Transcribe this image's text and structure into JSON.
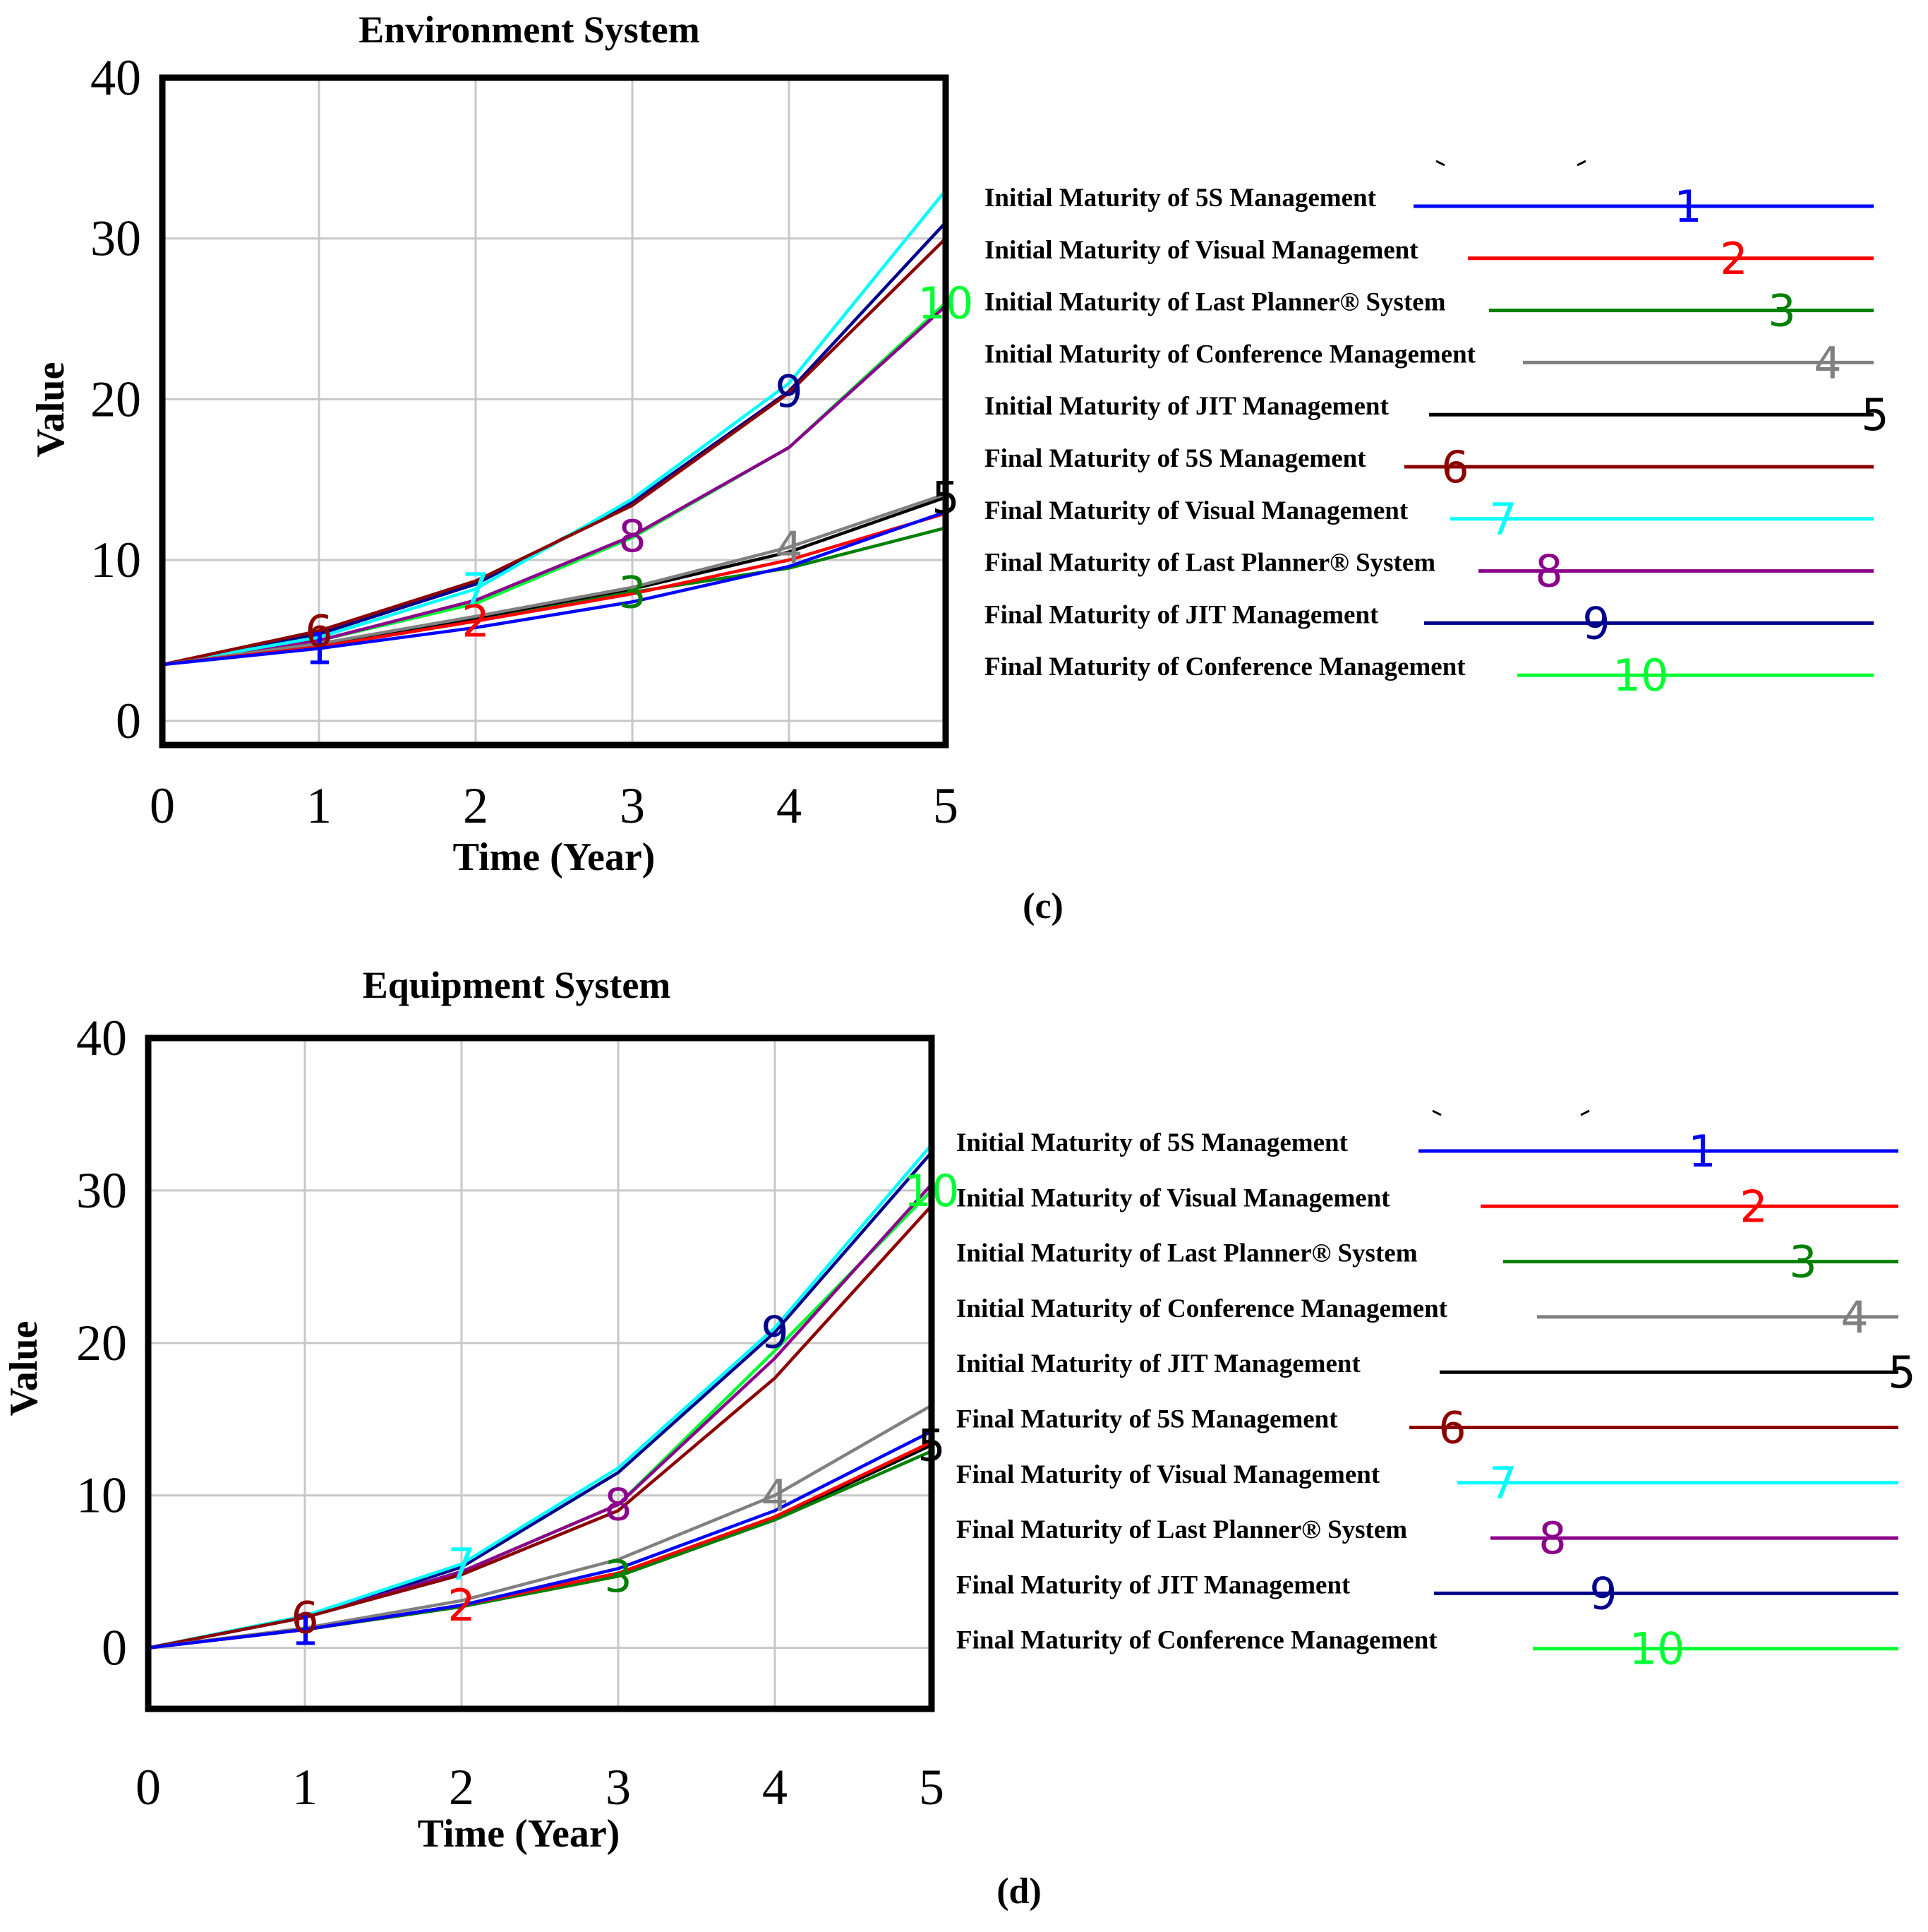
{
  "chart_data": [
    {
      "type": "line",
      "panel_label": "(c)",
      "title": "Environment System",
      "xlabel": "Time (Year)",
      "ylabel": "Value",
      "x": [
        0,
        1,
        2,
        3,
        4,
        5
      ],
      "x_tick_labels": [
        "0",
        "1",
        "2",
        "3",
        "4",
        "5"
      ],
      "y_ticks": [
        0,
        10,
        20,
        30,
        40
      ],
      "y_tick_labels": [
        "0",
        "10",
        "20",
        "30",
        "40"
      ],
      "xlim": [
        0,
        5
      ],
      "ylim": [
        -1.5,
        40
      ],
      "grid": true,
      "legend_position": "right",
      "series": [
        {
          "marker": "1",
          "name": "Initial Maturity of 5S Management",
          "color": "#0000ff",
          "values": [
            3.5,
            4.5,
            5.8,
            7.4,
            9.6,
            13.0
          ]
        },
        {
          "marker": "2",
          "name": "Initial Maturity of Visual Management",
          "color": "#ff0000",
          "values": [
            3.5,
            4.6,
            6.2,
            7.9,
            10.0,
            12.9
          ]
        },
        {
          "marker": "3",
          "name": "Initial Maturity of Last Planner® System",
          "color": "#008000",
          "values": [
            3.5,
            4.6,
            6.2,
            8.0,
            9.5,
            12.0
          ]
        },
        {
          "marker": "4",
          "name": "Initial Maturity of Conference Management",
          "color": "#808080",
          "values": [
            3.5,
            4.8,
            6.5,
            8.3,
            10.8,
            14.1
          ]
        },
        {
          "marker": "5",
          "name": "Initial Maturity of JIT Management",
          "color": "#000000",
          "values": [
            3.5,
            4.7,
            6.4,
            8.2,
            10.5,
            13.9
          ]
        },
        {
          "marker": "6",
          "name": "Final Maturity of 5S Management",
          "color": "#8b0000",
          "values": [
            3.5,
            5.6,
            8.7,
            13.4,
            20.4,
            30.0
          ]
        },
        {
          "marker": "7",
          "name": "Final Maturity of Visual Management",
          "color": "#00ffff",
          "values": [
            3.5,
            5.2,
            8.2,
            13.8,
            21.0,
            33.0
          ]
        },
        {
          "marker": "8",
          "name": "Final Maturity of Last Planner® System",
          "color": "#8b008b",
          "values": [
            3.5,
            5.0,
            7.5,
            11.5,
            17.0,
            25.8
          ]
        },
        {
          "marker": "9",
          "name": "Final Maturity of JIT Management",
          "color": "#00008b",
          "values": [
            3.5,
            5.4,
            8.5,
            13.6,
            20.5,
            31.0
          ]
        },
        {
          "marker": "10",
          "name": "Final Maturity of Conference Management",
          "color": "#00ff33",
          "values": [
            3.5,
            5.0,
            7.3,
            11.4,
            17.0,
            26.0
          ]
        }
      ]
    },
    {
      "type": "line",
      "panel_label": "(d)",
      "title": "Equipment System",
      "xlabel": "Time (Year)",
      "ylabel": "Value",
      "x": [
        0,
        1,
        2,
        3,
        4,
        5
      ],
      "x_tick_labels": [
        "0",
        "1",
        "2",
        "3",
        "4",
        "5"
      ],
      "y_ticks": [
        0,
        10,
        20,
        30,
        40
      ],
      "y_tick_labels": [
        "0",
        "10",
        "20",
        "30",
        "40"
      ],
      "xlim": [
        0,
        5
      ],
      "ylim": [
        -4,
        40
      ],
      "grid": true,
      "legend_position": "right",
      "series": [
        {
          "marker": "1",
          "name": "Initial Maturity of 5S Management",
          "color": "#0000ff",
          "values": [
            0,
            1.2,
            2.8,
            5.2,
            9.0,
            14.2
          ]
        },
        {
          "marker": "2",
          "name": "Initial Maturity of Visual Management",
          "color": "#ff0000",
          "values": [
            0,
            1.2,
            2.8,
            4.9,
            8.6,
            13.5
          ]
        },
        {
          "marker": "3",
          "name": "Initial Maturity of Last Planner® System",
          "color": "#008000",
          "values": [
            0,
            1.2,
            2.7,
            4.7,
            8.4,
            12.9
          ]
        },
        {
          "marker": "4",
          "name": "Initial Maturity of Conference Management",
          "color": "#808080",
          "values": [
            0,
            1.3,
            3.1,
            5.8,
            10.0,
            15.9
          ]
        },
        {
          "marker": "5",
          "name": "Initial Maturity of JIT Management",
          "color": "#000000",
          "values": [
            0,
            1.2,
            2.7,
            4.8,
            8.5,
            13.3
          ]
        },
        {
          "marker": "6",
          "name": "Final Maturity of 5S Management",
          "color": "#8b0000",
          "values": [
            0,
            2.0,
            4.8,
            9.0,
            17.7,
            29.0
          ]
        },
        {
          "marker": "7",
          "name": "Final Maturity of Visual Management",
          "color": "#00ffff",
          "values": [
            0,
            2.1,
            5.5,
            11.8,
            21.0,
            33.0
          ]
        },
        {
          "marker": "8",
          "name": "Final Maturity of Last Planner® System",
          "color": "#8b008b",
          "values": [
            0,
            2.0,
            5.0,
            9.4,
            19.0,
            30.4
          ]
        },
        {
          "marker": "9",
          "name": "Final Maturity of JIT Management",
          "color": "#00008b",
          "values": [
            0,
            2.0,
            5.3,
            11.5,
            20.7,
            32.5
          ]
        },
        {
          "marker": "10",
          "name": "Final Maturity of Conference Management",
          "color": "#00ff33",
          "values": [
            0,
            2.0,
            5.0,
            9.4,
            19.5,
            30.0
          ]
        }
      ]
    }
  ]
}
